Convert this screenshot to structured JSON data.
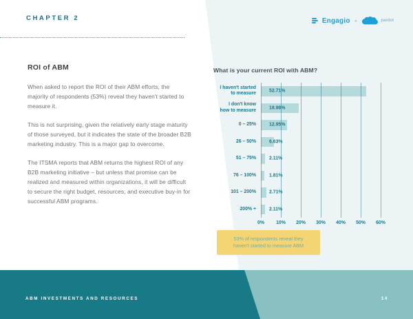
{
  "page": {
    "chapter_label": "CHAPTER 2",
    "footer_title": "ABM INVESTMENTS AND RESOURCES",
    "page_number": "14"
  },
  "logos": {
    "engagio": "Engagio",
    "plus": "+",
    "pardot": "pardot"
  },
  "article": {
    "title": "ROI of ABM",
    "paragraphs": [
      "When asked to report the ROI of their ABM efforts, the majority of respondents (53%) reveal they haven't started to measure it.",
      "This is not surprising, given the relatively early stage maturity of those surveyed, but it indicates the state of the broader B2B marketing industry. This is a major gap to overcome.",
      "The ITSMA reports that ABM returns the highest ROI of any B2B marketing initiative – but unless that promise can be realized and measured within organizations, it will be difficult to secure the right budget, resources, and executive buy-in for successful ABM programs."
    ]
  },
  "chart_data": {
    "type": "bar",
    "orientation": "horizontal",
    "title": "What is your current ROI with ABM?",
    "categories": [
      "I haven't started\nto measure",
      "I don't know\nhow to measure",
      "0 – 25%",
      "26 – 50%",
      "51 – 75%",
      "76 – 100%",
      "101 – 200%",
      "200% +"
    ],
    "values": [
      52.71,
      18.98,
      12.95,
      6.63,
      2.11,
      1.81,
      2.71,
      2.11
    ],
    "value_labels": [
      "52.71%",
      "18.98%",
      "12.95%",
      "6.63%",
      "2.11%",
      "1.81%",
      "2.71%",
      "2.11%"
    ],
    "x_ticks": [
      "0%",
      "10%",
      "20%",
      "30%",
      "40%",
      "50%",
      "60%"
    ],
    "xlim": [
      0,
      60
    ],
    "grid": true,
    "legend": "none",
    "bar_color": "#b5dadb",
    "grid_color": "rgba(43,130,145,0.55)",
    "label_color": "#19788a"
  },
  "callout": {
    "text": "53% of respondents reveal they\nhaven't started to measure ABM",
    "background": "#f5d573",
    "text_color": "#7fac96"
  },
  "colors": {
    "accent_teal": "#19788a",
    "footer_dark": "#187a87",
    "footer_light": "#89c1c3",
    "background_wedge": "#edf4f6",
    "engagio_blue": "#2b9ccd"
  }
}
